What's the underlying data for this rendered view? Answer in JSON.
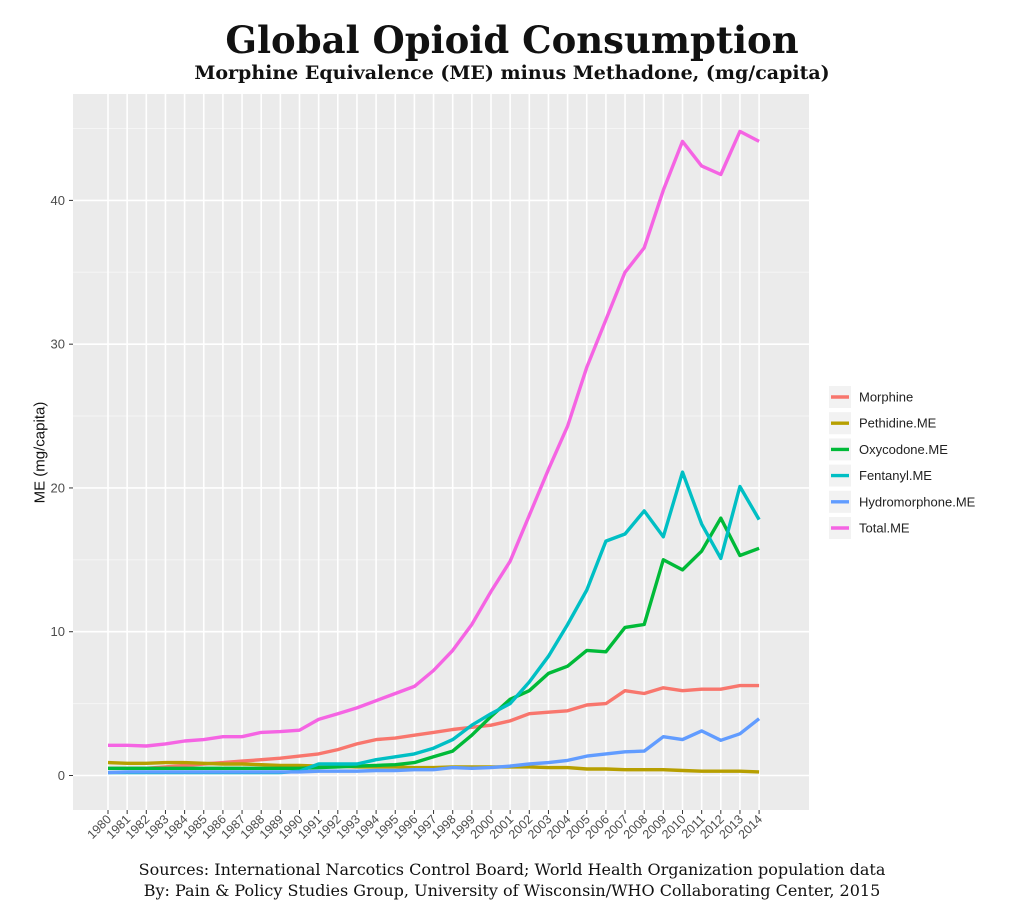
{
  "chart_data": {
    "type": "line",
    "title": "Global Opioid Consumption",
    "subtitle": "Morphine Equivalence (ME) minus Methadone, (mg/capita)",
    "xlabel": "",
    "ylabel": "ME (mg/capita)",
    "ylim": [
      -2.4,
      47.4
    ],
    "yticks": [
      0,
      10,
      20,
      30,
      40
    ],
    "grid": true,
    "legend_position": "right",
    "x": [
      "1980",
      "1981",
      "1982",
      "1983",
      "1984",
      "1985",
      "1986",
      "1987",
      "1988",
      "1989",
      "1990",
      "1991",
      "1992",
      "1993",
      "1994",
      "1995",
      "1996",
      "1997",
      "1998",
      "1999",
      "2000",
      "2001",
      "2002",
      "2003",
      "2004",
      "2005",
      "2006",
      "2007",
      "2008",
      "2009",
      "2010",
      "2011",
      "2012",
      "2013",
      "2014"
    ],
    "series": [
      {
        "name": "Morphine",
        "color": "#F8766D",
        "values": [
          0.5,
          0.5,
          0.5,
          0.6,
          0.7,
          0.8,
          0.9,
          1.0,
          1.1,
          1.2,
          1.35,
          1.5,
          1.8,
          2.2,
          2.5,
          2.6,
          2.8,
          3.0,
          3.2,
          3.35,
          3.5,
          3.8,
          4.3,
          4.4,
          4.5,
          4.9,
          5.0,
          5.9,
          5.7,
          6.1,
          5.9,
          6.0,
          6.0,
          6.25,
          6.25
        ]
      },
      {
        "name": "Pethidine.ME",
        "color": "#B79F00",
        "values": [
          0.9,
          0.85,
          0.85,
          0.9,
          0.9,
          0.85,
          0.8,
          0.8,
          0.75,
          0.7,
          0.7,
          0.65,
          0.65,
          0.6,
          0.6,
          0.6,
          0.55,
          0.55,
          0.6,
          0.6,
          0.6,
          0.6,
          0.6,
          0.55,
          0.55,
          0.45,
          0.45,
          0.4,
          0.4,
          0.4,
          0.35,
          0.3,
          0.3,
          0.3,
          0.25
        ]
      },
      {
        "name": "Oxycodone.ME",
        "color": "#00BA38",
        "values": [
          0.5,
          0.5,
          0.5,
          0.5,
          0.5,
          0.5,
          0.5,
          0.5,
          0.5,
          0.5,
          0.5,
          0.55,
          0.6,
          0.65,
          0.7,
          0.75,
          0.9,
          1.3,
          1.7,
          2.8,
          4.1,
          5.3,
          5.9,
          7.1,
          7.6,
          8.7,
          8.6,
          10.3,
          10.5,
          15.0,
          14.3,
          15.6,
          17.9,
          15.3,
          15.8
        ]
      },
      {
        "name": "Fentanyl.ME",
        "color": "#00BFC4",
        "values": [
          0.2,
          0.2,
          0.2,
          0.2,
          0.2,
          0.2,
          0.2,
          0.2,
          0.2,
          0.2,
          0.3,
          0.8,
          0.8,
          0.8,
          1.1,
          1.3,
          1.5,
          1.9,
          2.5,
          3.5,
          4.3,
          5.0,
          6.5,
          8.3,
          10.5,
          12.9,
          16.3,
          16.8,
          18.4,
          16.6,
          21.1,
          17.5,
          15.1,
          20.1,
          17.8
        ]
      },
      {
        "name": "Hydromorphone.ME",
        "color": "#619CFF",
        "values": [
          0.2,
          0.25,
          0.25,
          0.25,
          0.25,
          0.25,
          0.25,
          0.25,
          0.25,
          0.25,
          0.25,
          0.3,
          0.3,
          0.3,
          0.35,
          0.35,
          0.4,
          0.4,
          0.55,
          0.5,
          0.55,
          0.65,
          0.8,
          0.9,
          1.05,
          1.35,
          1.5,
          1.65,
          1.7,
          2.7,
          2.5,
          3.1,
          2.45,
          2.9,
          3.95
        ]
      },
      {
        "name": "Total.ME",
        "color": "#F564E3",
        "values": [
          2.1,
          2.1,
          2.05,
          2.2,
          2.4,
          2.5,
          2.7,
          2.7,
          3.0,
          3.05,
          3.15,
          3.9,
          4.3,
          4.7,
          5.2,
          5.7,
          6.2,
          7.3,
          8.7,
          10.5,
          12.8,
          14.9,
          18.1,
          21.3,
          24.3,
          28.4,
          31.7,
          35.0,
          36.7,
          40.7,
          44.1,
          42.4,
          41.8,
          44.8,
          44.1
        ]
      }
    ]
  },
  "sources": {
    "line1": "Sources: International Narcotics Control Board; World Health Organization population data",
    "line2": "By: Pain & Policy Studies Group, University of Wisconsin/WHO Collaborating Center, 2015"
  }
}
